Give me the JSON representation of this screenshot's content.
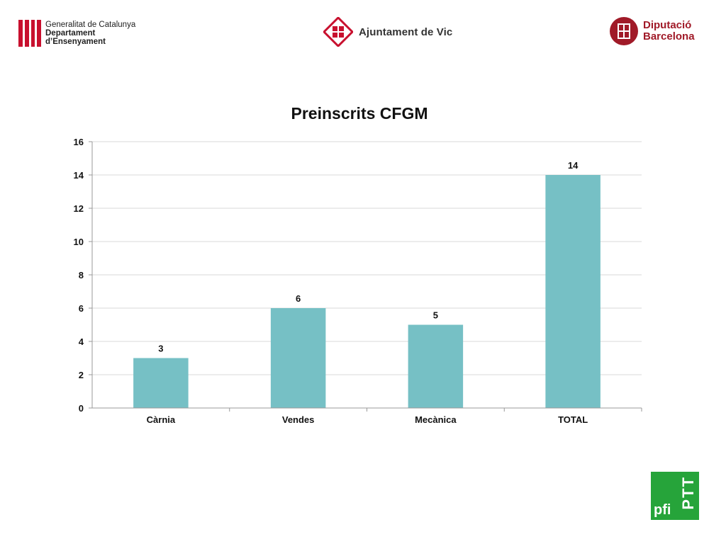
{
  "logos": {
    "generalitat": {
      "line1": "Generalitat de Catalunya",
      "line2": "Departament",
      "line3": "d’Ensenyament"
    },
    "vic": {
      "name": "Ajuntament de Vic"
    },
    "diputacio": {
      "line1": "Diputació",
      "line2": "Barcelona"
    },
    "pfi": {
      "line1": "PTT",
      "line2": "pfi"
    }
  },
  "colors": {
    "bar": "#76c0c5",
    "grid": "#d9d9d9",
    "axis": "#999999"
  },
  "chart_data": {
    "type": "bar",
    "title": "Preinscrits CFGM",
    "categories": [
      "Càrnia",
      "Vendes",
      "Mecànica",
      "TOTAL"
    ],
    "values": [
      3,
      6,
      5,
      14
    ],
    "xlabel": "",
    "ylabel": "",
    "ylim": [
      0,
      16
    ],
    "yticks": [
      0,
      2,
      4,
      6,
      8,
      10,
      12,
      14,
      16
    ],
    "grid": true,
    "legend": "none"
  }
}
